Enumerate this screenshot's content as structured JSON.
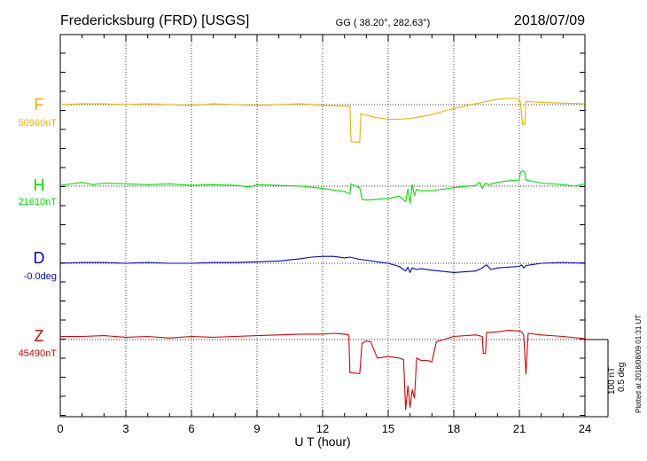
{
  "header": {
    "station": "Fredericksburg (FRD)  [USGS]",
    "coords": "GG ( 38.20°, 282.63°)",
    "date": "2018/07/09"
  },
  "footer": {
    "plotted": "Plotted at 2018/08/09 01:31  UT",
    "scale_nt": "100 nT",
    "scale_deg": "0.5 deg"
  },
  "chart_data": {
    "type": "line",
    "title": "Fredericksburg (FRD)  [USGS]",
    "subtitle": "GG ( 38.20°, 282.63°)",
    "xlabel": "U T (hour)",
    "xlim": [
      0,
      24
    ],
    "xticks": [
      "0",
      "3",
      "6",
      "9",
      "12",
      "15",
      "18",
      "21",
      "24"
    ],
    "grid": true,
    "scale_bar": {
      "nT": 100,
      "deg": 0.5
    },
    "series": [
      {
        "name": "F",
        "baseline": "50960nT",
        "color": "#f0b000",
        "x": [
          0,
          1,
          2,
          3,
          4,
          5,
          6,
          7,
          8,
          9,
          10,
          11,
          12,
          13,
          13.25,
          13.3,
          13.7,
          13.75,
          14.5,
          15,
          15.5,
          16,
          17,
          18,
          19,
          20,
          20.5,
          21,
          21.05,
          21.15,
          21.25,
          21.3,
          22,
          23,
          24
        ],
        "values": [
          0,
          1,
          1,
          0,
          1,
          0,
          -1,
          1,
          0,
          -1,
          0,
          1,
          -1,
          -2,
          -2,
          -48,
          -49,
          -12,
          -17,
          -19,
          -19,
          -18,
          -13,
          -5,
          1,
          7,
          8,
          8,
          2,
          -26,
          -25,
          4,
          3,
          2,
          1
        ]
      },
      {
        "name": "H",
        "baseline": "21610nT",
        "color": "#00e000",
        "x": [
          0,
          0.5,
          1,
          1.5,
          2,
          3,
          4,
          5,
          6,
          7,
          8,
          8.7,
          9,
          10,
          11,
          12,
          13,
          13.25,
          13.3,
          13.7,
          13.8,
          14,
          15,
          15.5,
          15.8,
          15.9,
          16,
          16.1,
          16.2,
          16.3,
          16.5,
          17,
          18,
          19,
          19.2,
          19.3,
          19.45,
          19.6,
          20,
          20.5,
          21,
          21.05,
          21.15,
          21.25,
          21.3,
          22,
          23,
          23.5,
          24
        ],
        "values": [
          1,
          3,
          5,
          2,
          4,
          3,
          2,
          3,
          1,
          2,
          1,
          -1,
          2,
          1,
          0,
          -3,
          -7,
          -10,
          3,
          -2,
          -17,
          -18,
          -16,
          -13,
          -20,
          -4,
          -22,
          2,
          -12,
          -4,
          -6,
          -6,
          -2,
          1,
          5,
          -3,
          4,
          2,
          5,
          7,
          8,
          18,
          20,
          18,
          8,
          4,
          2,
          0,
          3
        ]
      },
      {
        "name": "D",
        "baseline": "-0.0deg",
        "color": "#0000dd",
        "x": [
          0,
          1,
          2,
          3,
          4,
          5,
          6,
          7,
          8,
          9,
          10,
          11,
          11.5,
          12,
          12.5,
          13,
          13.25,
          13.7,
          14,
          14.5,
          15,
          15.5,
          15.8,
          15.9,
          16,
          16.1,
          16.3,
          16.5,
          17,
          18,
          19,
          19.3,
          19.5,
          19.7,
          20,
          21,
          21.1,
          21.2,
          21.3,
          22,
          23,
          24
        ],
        "values": [
          0,
          1,
          1,
          0,
          1,
          0,
          0,
          1,
          1,
          2,
          3,
          6,
          8,
          9,
          9,
          7,
          8,
          5,
          4,
          2,
          0,
          -4,
          -10,
          -5,
          -12,
          -6,
          -8,
          -7,
          -9,
          -12,
          -10,
          -6,
          -2,
          -8,
          -6,
          -4,
          -2,
          -6,
          -3,
          0,
          1,
          0
        ]
      },
      {
        "name": "Z",
        "baseline": "45490nT",
        "color": "#dd0000",
        "x": [
          0,
          1,
          2,
          3,
          4,
          5,
          6,
          7,
          8,
          9,
          10,
          11,
          12,
          12.5,
          13,
          13.2,
          13.25,
          13.7,
          13.8,
          14,
          14.2,
          14.5,
          15,
          15.5,
          15.7,
          15.8,
          15.9,
          16,
          16.1,
          16.2,
          16.3,
          16.5,
          16.8,
          17,
          17.2,
          18,
          19,
          19.3,
          19.35,
          19.45,
          19.5,
          20,
          20.5,
          21,
          21.1,
          21.2,
          21.3,
          21.4,
          22,
          23,
          24
        ],
        "values": [
          4,
          4,
          5,
          3,
          4,
          2,
          4,
          3,
          4,
          5,
          6,
          7,
          7,
          8,
          7,
          6,
          -43,
          -44,
          -5,
          -2,
          -3,
          -24,
          -22,
          -24,
          -26,
          -91,
          -60,
          -88,
          -65,
          -76,
          -24,
          -27,
          -27,
          -29,
          -3,
          4,
          6,
          4,
          -18,
          -18,
          9,
          10,
          12,
          11,
          10,
          6,
          -45,
          8,
          6,
          4,
          1
        ]
      }
    ]
  }
}
